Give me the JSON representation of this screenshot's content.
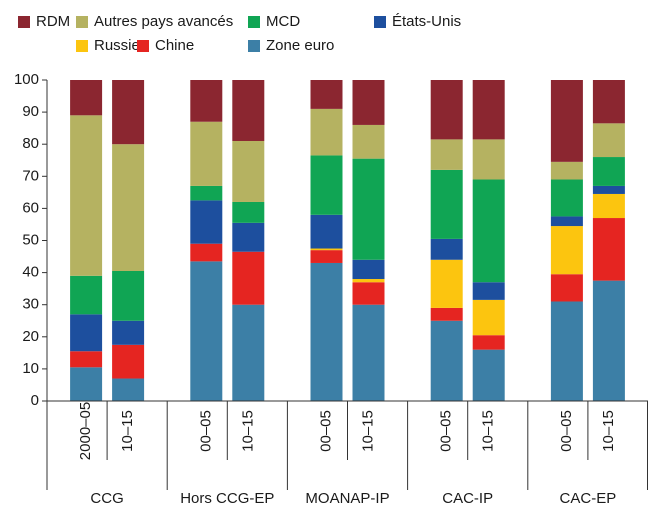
{
  "chart_data": {
    "type": "stacked_bar",
    "categories": [
      "2000–05",
      "10–15",
      "00–05",
      "10–15",
      "00–05",
      "10–15",
      "00–05",
      "10–15",
      "00–05",
      "10–15"
    ],
    "groups": [
      "CCG",
      "Hors CCG-EP",
      "MOANAP-IP",
      "CAC-IP",
      "CAC-EP"
    ],
    "series": [
      {
        "name": "RDM",
        "color": "#8b2630",
        "values": [
          11,
          20,
          13,
          19,
          9,
          14,
          18.5,
          18.5,
          25.5,
          13.5
        ]
      },
      {
        "name": "Autres pays avancés",
        "color": "#b5b261",
        "values": [
          50,
          39.5,
          20,
          19,
          14.5,
          10.5,
          9.5,
          12.5,
          5.5,
          10.5
        ]
      },
      {
        "name": "MCD",
        "color": "#10a554",
        "values": [
          12,
          15.5,
          4.5,
          6.5,
          18.5,
          31.5,
          21.5,
          32,
          11.5,
          9
        ]
      },
      {
        "name": "États-Unis",
        "color": "#1d4f9e",
        "values": [
          11.5,
          7.5,
          13.5,
          9,
          10.5,
          6,
          6.5,
          5.5,
          3,
          2.5
        ]
      },
      {
        "name": "Russie",
        "color": "#fcc50f",
        "values": [
          0,
          0,
          0,
          0,
          0.5,
          1,
          15,
          11,
          15,
          7.5
        ]
      },
      {
        "name": "Chine",
        "color": "#e52521",
        "values": [
          5,
          10.5,
          5.5,
          16.5,
          4,
          7,
          4,
          4.5,
          8.5,
          19.5
        ]
      },
      {
        "name": "Zone euro",
        "color": "#3c7fa6",
        "values": [
          10.5,
          7,
          43.5,
          30,
          43,
          30,
          25,
          16,
          31,
          37.5
        ]
      }
    ],
    "ylim": [
      0,
      100
    ],
    "yticks": [
      0,
      10,
      20,
      30,
      40,
      50,
      60,
      70,
      80,
      90,
      100
    ]
  }
}
